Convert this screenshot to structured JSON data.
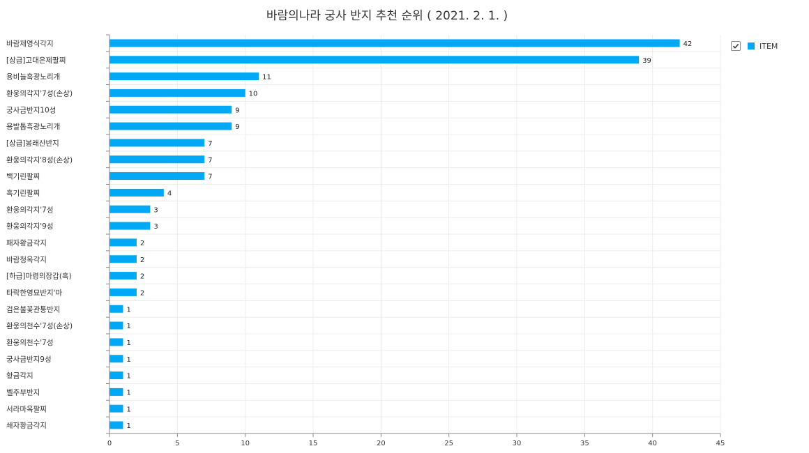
{
  "chart_data": {
    "type": "bar",
    "orientation": "horizontal",
    "title": "바람의나라 궁사 반지 추천 순위 ( 2021. 2. 1. )",
    "categories": [
      "바람제영식각지",
      "[상급]고대은제팔찌",
      "용비늘흑광노리개",
      "환웅의각지'7성(손상)",
      "궁사금반지10성",
      "용발톱흑광노리개",
      "[상급]봉래산반지",
      "환웅의각지'8성(손상)",
      "백기린팔찌",
      "흑기린팔찌",
      "환웅의각지'7성",
      "환웅의각지'9성",
      "패자황금각지",
      "바람청옥각지",
      "[하급]마령의장갑(흑)",
      "타락한영묘반지'마",
      "검은불꽃관통반지",
      "환웅의천수'7성(손상)",
      "환웅의천수'7성",
      "궁사금반지9성",
      "황금각지",
      "벨주부반지",
      "서라마옥팔찌",
      "쇄자황금각지"
    ],
    "series": [
      {
        "name": "ITEM",
        "values": [
          42,
          39,
          11,
          10,
          9,
          9,
          7,
          7,
          7,
          4,
          3,
          3,
          2,
          2,
          2,
          2,
          1,
          1,
          1,
          1,
          1,
          1,
          1,
          1
        ]
      }
    ],
    "xlim": [
      0,
      45
    ],
    "xticks": [
      0,
      5,
      10,
      15,
      20,
      25,
      30,
      35,
      40,
      45
    ],
    "grid": true,
    "data_labels": true,
    "legend_position": "top-right"
  },
  "legend": {
    "label": "ITEM",
    "checked": true
  },
  "colors": {
    "bar": "#00a8f5",
    "grid": "#ececec",
    "axis": "#888888"
  },
  "icons": {
    "legend_toggle": "checkmark-icon"
  }
}
